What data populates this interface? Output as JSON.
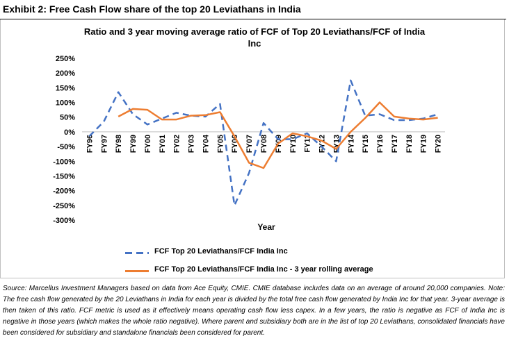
{
  "exhibit": {
    "header": "Exhibit 2: Free Cash Flow share of the top 20 Leviathans in India"
  },
  "chart_data": {
    "type": "line",
    "title_line1": "Ratio and 3 year moving average ratio of FCF of Top 20 Leviathans/FCF of India",
    "title_line2": "Inc",
    "xlabel": "Year",
    "ylabel": "",
    "ylim": [
      -300,
      250
    ],
    "y_ticks": [
      250,
      200,
      150,
      100,
      50,
      0,
      -50,
      -100,
      -150,
      -200,
      -250,
      -300
    ],
    "y_tick_labels": [
      "250%",
      "200%",
      "150%",
      "100%",
      "50%",
      "0%",
      "-50%",
      "-100%",
      "-150%",
      "-200%",
      "-250%",
      "-300%"
    ],
    "grid": false,
    "legend_position": "bottom",
    "categories": [
      "FY96",
      "FY97",
      "FY98",
      "FY99",
      "FY00",
      "FY01",
      "FY02",
      "FY03",
      "FY04",
      "FY05",
      "FY06",
      "FY07",
      "FY08",
      "FY09",
      "FY10",
      "FY11",
      "FY12",
      "FY13",
      "FY14",
      "FY15",
      "FY16",
      "FY17",
      "FY18",
      "FY19",
      "FY20"
    ],
    "series": [
      {
        "name": "FCF Top 20 Leviathans/FCF India Inc",
        "color": "#4472c4",
        "style": "dashed",
        "values": [
          -15,
          35,
          135,
          60,
          25,
          45,
          65,
          55,
          52,
          95,
          -250,
          -140,
          30,
          -25,
          -25,
          -5,
          -50,
          -100,
          175,
          55,
          60,
          40,
          40,
          45,
          60
        ]
      },
      {
        "name": "FCF Top 20 Leviathans/FCF India Inc - 3 year rolling average",
        "color": "#ed7d31",
        "style": "solid",
        "values": [
          null,
          null,
          52,
          78,
          75,
          42,
          42,
          55,
          57,
          67,
          -15,
          -105,
          -123,
          -40,
          -5,
          -15,
          -30,
          -58,
          0,
          47,
          100,
          52,
          45,
          42,
          48
        ]
      }
    ]
  },
  "source_note": "Source: Marcellus Investment Managers based on data from Ace Equity, CMIE. CMIE database includes data on an average of around 20,000 companies. Note: The free cash flow generated by the 20 Leviathans in India for each year is divided by the total free cash flow generated by India Inc for that year. 3-year average is then taken of this ratio. FCF metric is used as it effectively means operating cash flow less capex. In a few years, the ratio is negative as FCF of India Inc is negative in those years (which makes the whole ratio negative). Where parent and subsidiary both are in the list of top 20 Leviathans, consolidated financials have been considered for subsidiary and standalone financials been considered for parent."
}
